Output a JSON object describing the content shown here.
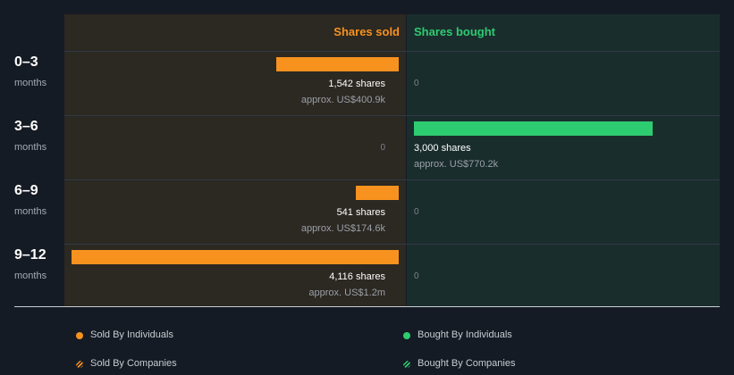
{
  "chart_data": {
    "type": "bar",
    "series": [
      {
        "name": "Shares sold",
        "values": [
          1542,
          0,
          541,
          4116
        ]
      },
      {
        "name": "Shares bought",
        "values": [
          0,
          3000,
          0,
          0
        ]
      }
    ],
    "rows": [
      {
        "period": "0–3",
        "unit": "months",
        "sold": 1542,
        "sold_shares": "1,542 shares",
        "sold_approx": "approx. US$400.9k",
        "bought": 0,
        "bought_zero": "0"
      },
      {
        "period": "3–6",
        "unit": "months",
        "sold": 0,
        "sold_zero": "0",
        "bought": 3000,
        "bought_shares": "3,000 shares",
        "bought_approx": "approx. US$770.2k"
      },
      {
        "period": "6–9",
        "unit": "months",
        "sold": 541,
        "sold_shares": "541 shares",
        "sold_approx": "approx. US$174.6k",
        "bought": 0,
        "bought_zero": "0"
      },
      {
        "period": "9–12",
        "unit": "months",
        "sold": 4116,
        "sold_shares": "4,116 shares",
        "sold_approx": "approx. US$1.2m",
        "bought": 0,
        "bought_zero": "0"
      }
    ],
    "headers": {
      "sold": "Shares sold",
      "bought": "Shares bought"
    },
    "legend": {
      "sold_individuals": "Sold By Individuals",
      "bought_individuals": "Bought By Individuals",
      "sold_companies": "Sold By Companies",
      "bought_companies": "Bought By Companies"
    },
    "colors": {
      "sold": "#f7921e",
      "bought": "#2ecc71"
    }
  }
}
